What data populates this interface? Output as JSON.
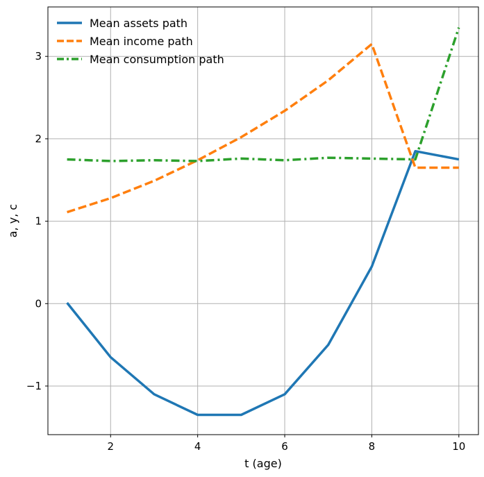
{
  "chart_data": {
    "type": "line",
    "title": "",
    "xlabel": "t (age)",
    "ylabel": "a, y, c",
    "xlim": [
      0.56,
      10.45
    ],
    "ylim": [
      -1.59,
      3.6
    ],
    "xticks": [
      2,
      4,
      6,
      8,
      10
    ],
    "yticks": [
      -1,
      0,
      1,
      2,
      3
    ],
    "ytick_labels": [
      "−1",
      "0",
      "1",
      "2",
      "3"
    ],
    "grid": true,
    "legend_position": "upper-left",
    "x": [
      1,
      2,
      3,
      4,
      5,
      6,
      7,
      8,
      9,
      10
    ],
    "series": [
      {
        "name": "Mean assets path",
        "color": "#1f77b4",
        "dash": "solid",
        "values": [
          0.01,
          -0.65,
          -1.1,
          -1.35,
          -1.35,
          -1.1,
          -0.5,
          0.45,
          1.85,
          1.75
        ]
      },
      {
        "name": "Mean income path",
        "color": "#ff7f0e",
        "dash": "dashed",
        "values": [
          1.11,
          1.28,
          1.49,
          1.74,
          2.02,
          2.34,
          2.71,
          3.15,
          1.65,
          1.65
        ]
      },
      {
        "name": "Mean consumption path",
        "color": "#2ca02c",
        "dash": "dashdot",
        "values": [
          1.75,
          1.73,
          1.74,
          1.73,
          1.76,
          1.74,
          1.77,
          1.76,
          1.75,
          3.35
        ]
      }
    ]
  }
}
